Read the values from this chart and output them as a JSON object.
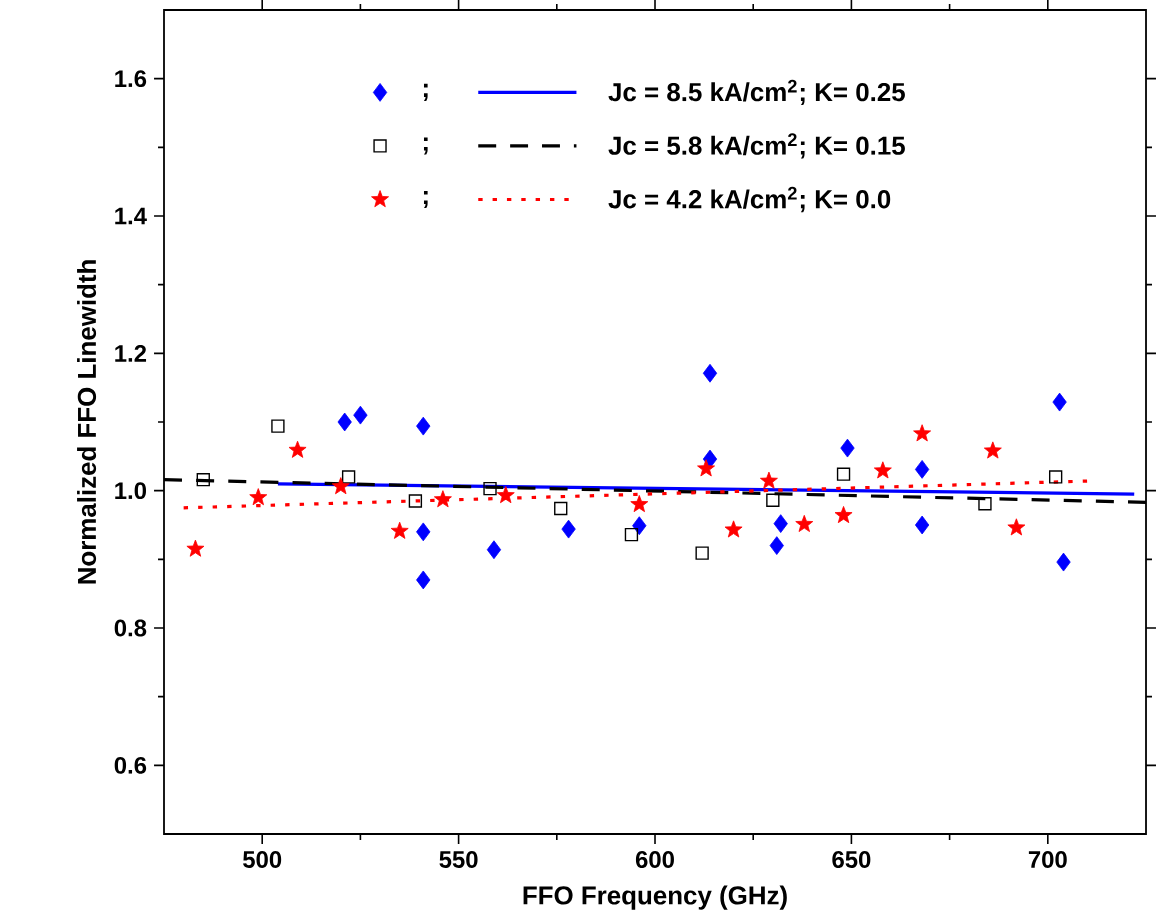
{
  "chart_data": {
    "type": "scatter",
    "xlabel": "FFO Frequency (GHz)",
    "ylabel": "Normalized FFO Linewidth",
    "xlim": [
      475,
      725
    ],
    "ylim": [
      0.5,
      1.7
    ],
    "xticks": [
      500,
      550,
      600,
      650,
      700
    ],
    "yticks": [
      0.6,
      0.8,
      {
        "value": 1.0,
        "label": "1.0"
      },
      1.2,
      1.4,
      1.6
    ],
    "legend": "top",
    "grid": false,
    "series": [
      {
        "name": ";",
        "marker": "diamond",
        "color": "#0000ff",
        "x": [
          521,
          525,
          541,
          541,
          541,
          559,
          578,
          596,
          614,
          614,
          631,
          632,
          649,
          668,
          668,
          703,
          704
        ],
        "values": [
          1.1,
          1.11,
          1.094,
          0.94,
          0.87,
          0.914,
          0.944,
          0.949,
          1.171,
          1.046,
          0.92,
          0.952,
          1.062,
          1.031,
          0.95,
          1.129,
          0.896
        ]
      },
      {
        "name": ";",
        "marker": "square",
        "color": "#000000",
        "x": [
          485,
          504,
          522,
          539,
          558,
          576,
          594,
          612,
          630,
          648,
          684,
          702
        ],
        "values": [
          1.016,
          1.094,
          1.02,
          0.985,
          1.003,
          0.974,
          0.936,
          0.909,
          0.986,
          1.024,
          0.981,
          1.02
        ]
      },
      {
        "name": ";",
        "marker": "star",
        "color": "#ff0000",
        "x": [
          483,
          499,
          509,
          520,
          535,
          546,
          562,
          596,
          613,
          620,
          629,
          638,
          648,
          658,
          668,
          686,
          692
        ],
        "values": [
          0.915,
          0.99,
          1.059,
          1.006,
          0.941,
          0.987,
          0.993,
          0.98,
          1.032,
          0.943,
          1.014,
          0.951,
          0.964,
          1.029,
          1.083,
          1.058,
          0.946
        ]
      },
      {
        "name": "Jc = 8.5 kA/cm$^{2}$;  K= 0.25",
        "type": "line",
        "line_style": "solid",
        "color": "#0000ff",
        "x": [
          504,
          722
        ],
        "values": [
          1.01,
          0.995
        ]
      },
      {
        "name": "Jc = 5.8 kA/cm$^{2}$;  K= 0.15",
        "type": "line",
        "line_style": "dashed",
        "color": "#000000",
        "x": [
          475,
          725
        ],
        "values": [
          1.016,
          0.983
        ]
      },
      {
        "name": "Jc = 4.2 kA/cm$^{2}$;  K= 0.0",
        "type": "line",
        "line_style": "dotted",
        "color": "#ff0000",
        "x": [
          480,
          710
        ],
        "values": [
          0.975,
          1.014
        ]
      }
    ]
  }
}
